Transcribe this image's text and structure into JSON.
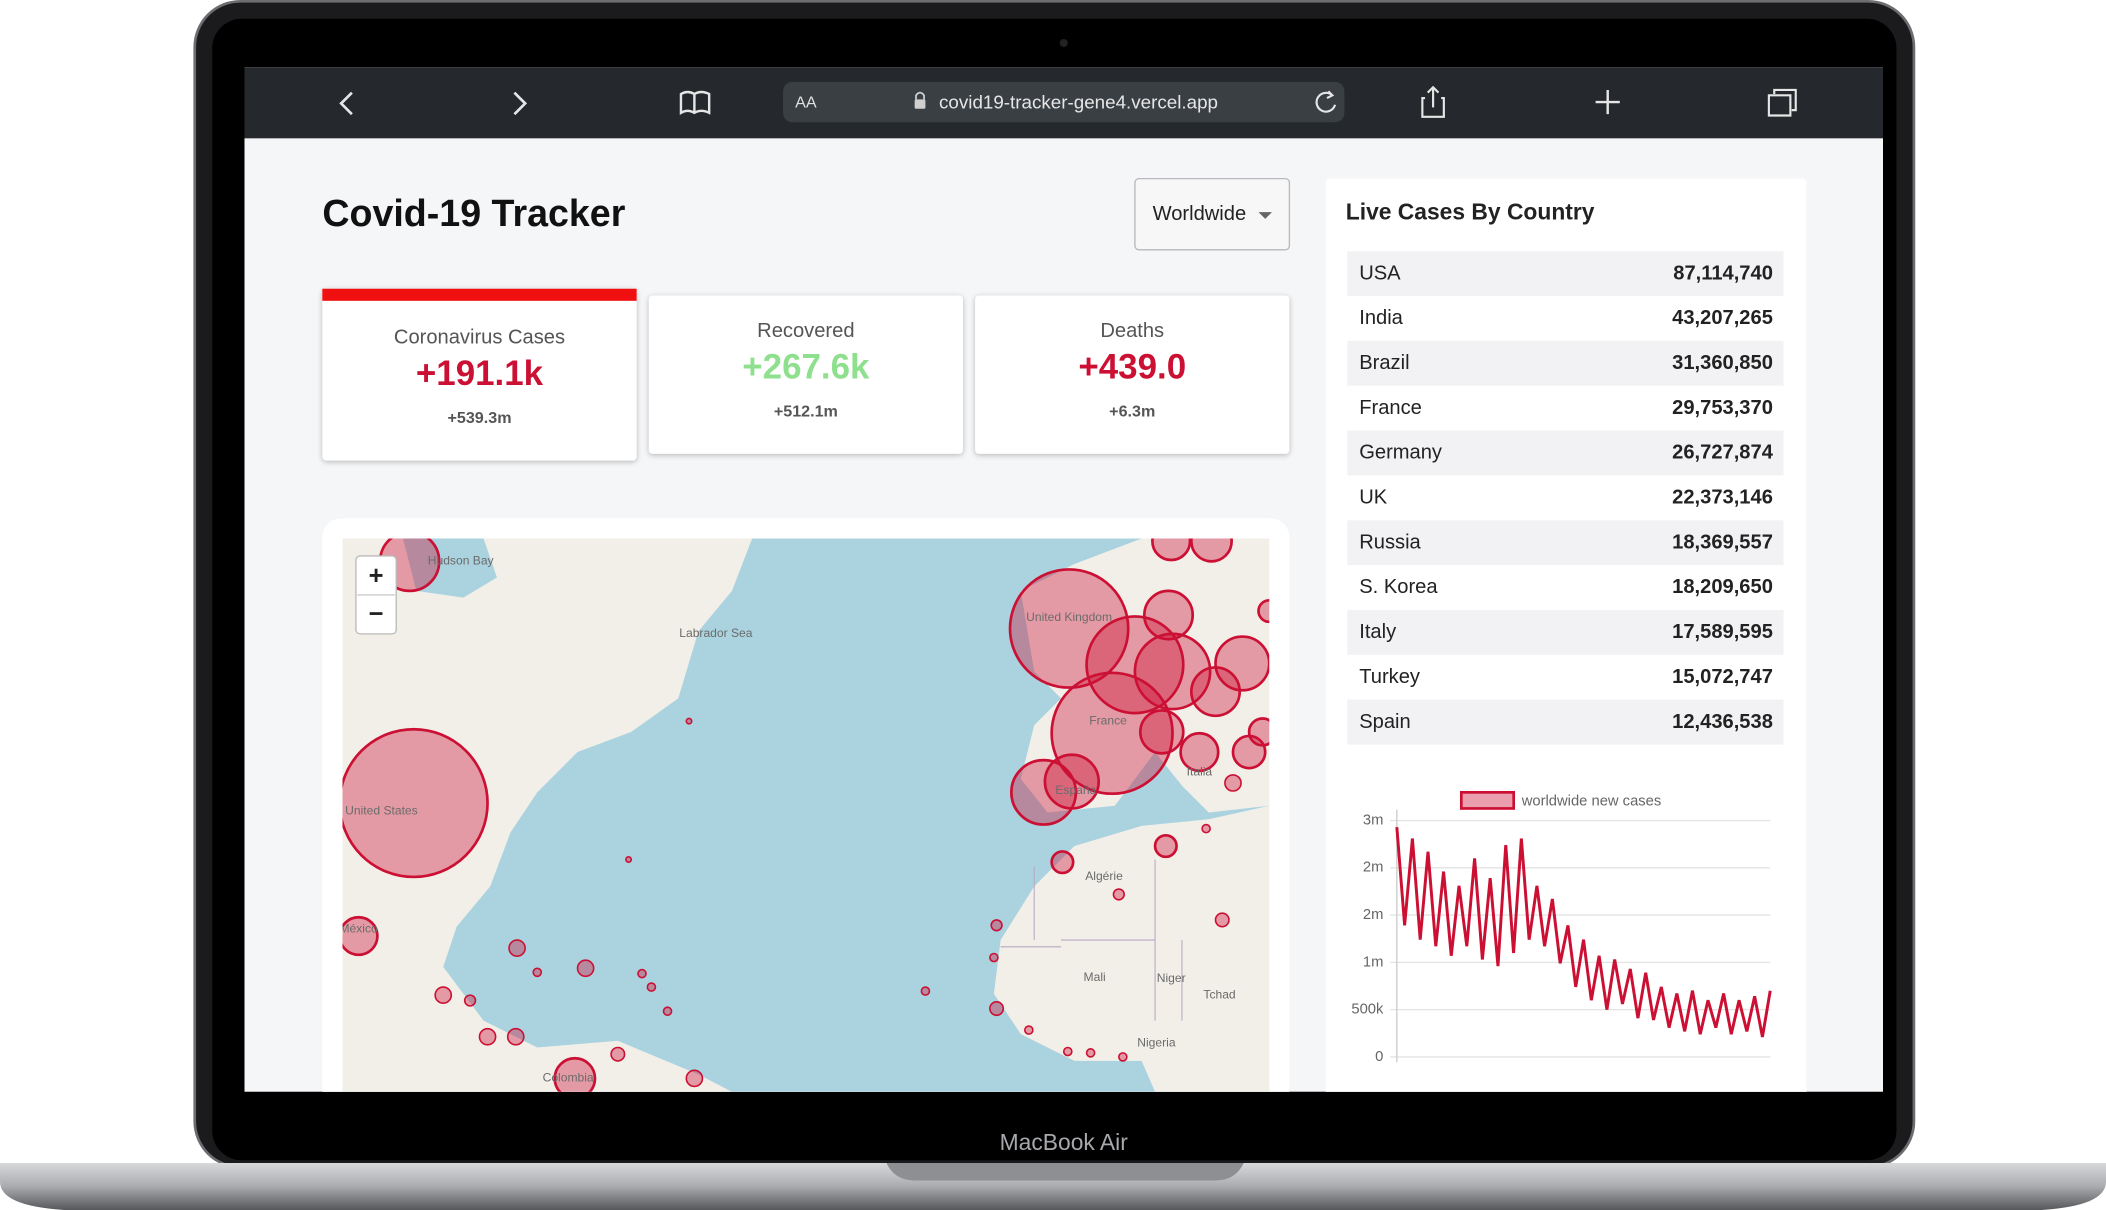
{
  "browser": {
    "text_size_button": "AA",
    "url": "covid19-tracker-gene4.vercel.app"
  },
  "app": {
    "title": "Covid-19 Tracker",
    "region_select": "Worldwide"
  },
  "stats": [
    {
      "label": "Coronavirus Cases",
      "today": "+191.1k",
      "total": "+539.3m"
    },
    {
      "label": "Recovered",
      "today": "+267.6k",
      "total": "+512.1m"
    },
    {
      "label": "Deaths",
      "today": "+439.0",
      "total": "+6.3m"
    }
  ],
  "map": {
    "zoom_in": "+",
    "zoom_out": "−",
    "labels": [
      "Hudson Bay",
      "Labrador Sea",
      "United Kingdom",
      "United States",
      "México",
      "France",
      "España",
      "Italia",
      "Algérie",
      "Mali",
      "Niger",
      "Tchad",
      "Nigeria",
      "Colombia"
    ]
  },
  "live_cases": {
    "title": "Live Cases By Country",
    "rows": [
      [
        "USA",
        "87,114,740"
      ],
      [
        "India",
        "43,207,265"
      ],
      [
        "Brazil",
        "31,360,850"
      ],
      [
        "France",
        "29,753,370"
      ],
      [
        "Germany",
        "26,727,874"
      ],
      [
        "UK",
        "22,373,146"
      ],
      [
        "Russia",
        "18,369,557"
      ],
      [
        "S. Korea",
        "18,209,650"
      ],
      [
        "Italy",
        "17,589,595"
      ],
      [
        "Turkey",
        "15,072,747"
      ],
      [
        "Spain",
        "12,436,538"
      ]
    ]
  },
  "chart_data": {
    "type": "line",
    "series": [
      {
        "name": "worldwide new cases",
        "color": "#cc1034",
        "values": [
          2430000,
          1390000,
          2310000,
          1240000,
          2170000,
          1170000,
          1960000,
          1070000,
          1810000,
          1170000,
          2100000,
          1030000,
          1890000,
          960000,
          2240000,
          1100000,
          2310000,
          1240000,
          1810000,
          1170000,
          1670000,
          990000,
          1390000,
          740000,
          1240000,
          600000,
          1070000,
          500000,
          1030000,
          560000,
          930000,
          410000,
          890000,
          390000,
          740000,
          310000,
          670000,
          270000,
          700000,
          240000,
          600000,
          310000,
          670000,
          240000,
          600000,
          270000,
          640000,
          210000,
          700000
        ]
      }
    ],
    "ylim": [
      0,
      2500000
    ],
    "yticks": [
      0,
      {
        "value": 500000,
        "label": "500k"
      },
      {
        "value": 1000000,
        "label": "1m"
      },
      {
        "value": 1500000,
        "label": "2m"
      },
      {
        "value": 2000000,
        "label": "2m"
      },
      {
        "value": 2500000,
        "label": "3m"
      }
    ],
    "grid": true
  },
  "device": {
    "label": "MacBook Air"
  }
}
